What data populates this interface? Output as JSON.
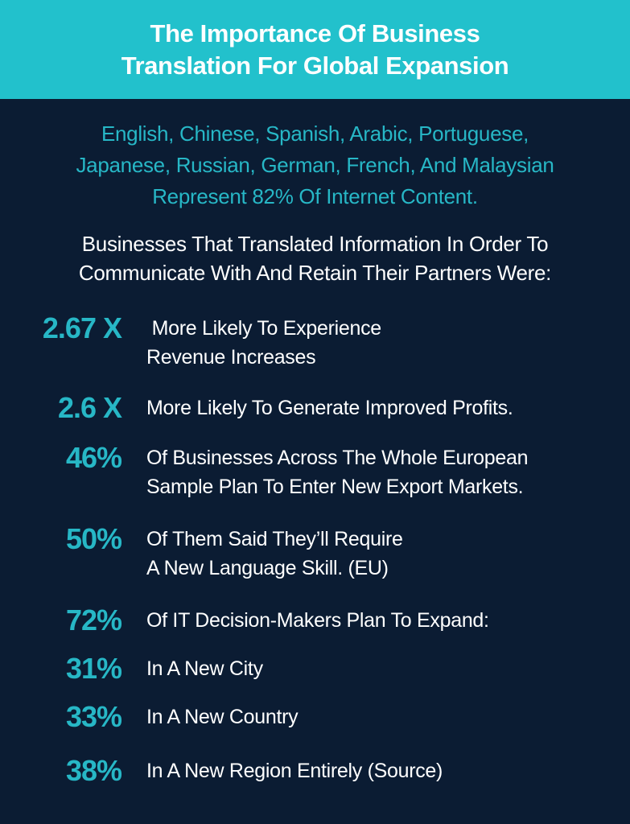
{
  "header": {
    "title_line1": "The Importance Of Business",
    "title_line2": "Translation For Global Expansion"
  },
  "subtitle": {
    "line1": "English, Chinese, Spanish, Arabic, Portuguese,",
    "line2": "Japanese, Russian, German, French, And Malaysian",
    "line3": "Represent 82% Of Internet Content."
  },
  "intro": {
    "line1": "Businesses That Translated Information In Order To",
    "line2": "Communicate With And Retain Their Partners Were:"
  },
  "stats": [
    {
      "value": "2.67 X",
      "line1": " More Likely To Experience",
      "line2": "Revenue Increases"
    },
    {
      "value": "2.6 X",
      "line1": "More Likely To Generate Improved Profits.",
      "line2": ""
    },
    {
      "value": "46%",
      "line1": "Of Businesses Across The Whole European",
      "line2": "Sample Plan To Enter New Export Markets."
    },
    {
      "value": "50%",
      "line1": "Of Them Said They’ll Require",
      "line2": "A New Language Skill. (EU)"
    },
    {
      "value": "72%",
      "line1": "Of IT Decision-Makers Plan To Expand:",
      "line2": ""
    },
    {
      "value": "31%",
      "line1": "In A New City",
      "line2": ""
    },
    {
      "value": "33%",
      "line1": "In A New Country",
      "line2": ""
    },
    {
      "value": "38%",
      "line1": "In A New Region Entirely (Source)",
      "line2": ""
    }
  ],
  "colors": {
    "header_bg": "#22c1cc",
    "page_bg": "#0b1c33",
    "accent": "#27b7c6",
    "text": "#ffffff"
  }
}
